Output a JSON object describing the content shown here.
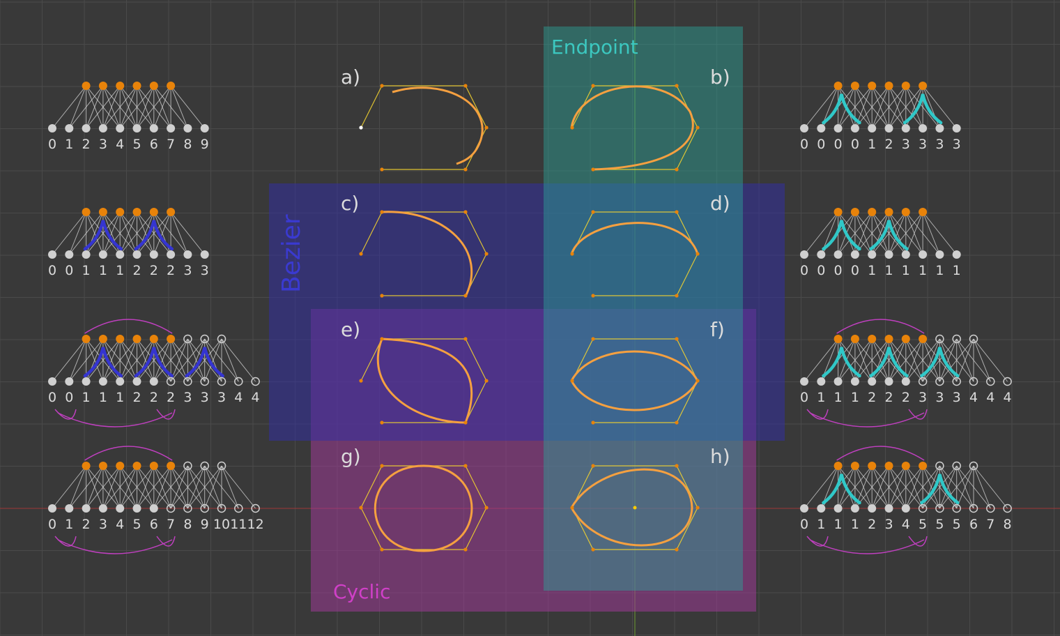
{
  "region_labels": {
    "endpoint": "Endpoint",
    "bezier": "Bezier",
    "cyclic": "Cyclic"
  },
  "panel_labels": [
    "a)",
    "b)",
    "c)",
    "d)",
    "e)",
    "f)",
    "g)",
    "h)"
  ],
  "knot_rows": {
    "left": [
      [
        "0",
        "1",
        "2",
        "3",
        "4",
        "5",
        "6",
        "7",
        "8",
        "9"
      ],
      [
        "0",
        "0",
        "1",
        "1",
        "1",
        "2",
        "2",
        "2",
        "3",
        "3"
      ],
      [
        "0",
        "0",
        "1",
        "1",
        "1",
        "2",
        "2",
        "2",
        "3",
        "3",
        "3",
        "4",
        "4"
      ],
      [
        "0",
        "1",
        "2",
        "3",
        "4",
        "5",
        "6",
        "7",
        "8",
        "9",
        "10",
        "11",
        "12"
      ]
    ],
    "right": [
      [
        "0",
        "0",
        "0",
        "0",
        "1",
        "2",
        "3",
        "3",
        "3",
        "3"
      ],
      [
        "0",
        "0",
        "0",
        "0",
        "1",
        "1",
        "1",
        "1",
        "1",
        "1"
      ],
      [
        "0",
        "1",
        "1",
        "1",
        "2",
        "2",
        "2",
        "3",
        "3",
        "3",
        "4",
        "4",
        "4"
      ],
      [
        "0",
        "1",
        "1",
        "1",
        "2",
        "3",
        "4",
        "5",
        "5",
        "5",
        "6",
        "7",
        "8"
      ]
    ]
  },
  "colors": {
    "background": "#393939",
    "grid": "#4a4a4a",
    "endpoint_region": "#2aa39a",
    "bezier_region": "#3330a0",
    "cyclic_region": "#9c3a96",
    "endpoint_text": "#3cc8c0",
    "bezier_text": "#3a3ad0",
    "cyclic_text": "#d040c8",
    "control_point": "#e8830a",
    "curve": "#f5a040",
    "polygon": "#f0d030",
    "bezier_arrow": "#3535d0",
    "endpoint_arrow": "#30c8c8",
    "wrap_arc": "#c040c0",
    "node": "#d0d0d0",
    "text": "#dcdcdc"
  }
}
